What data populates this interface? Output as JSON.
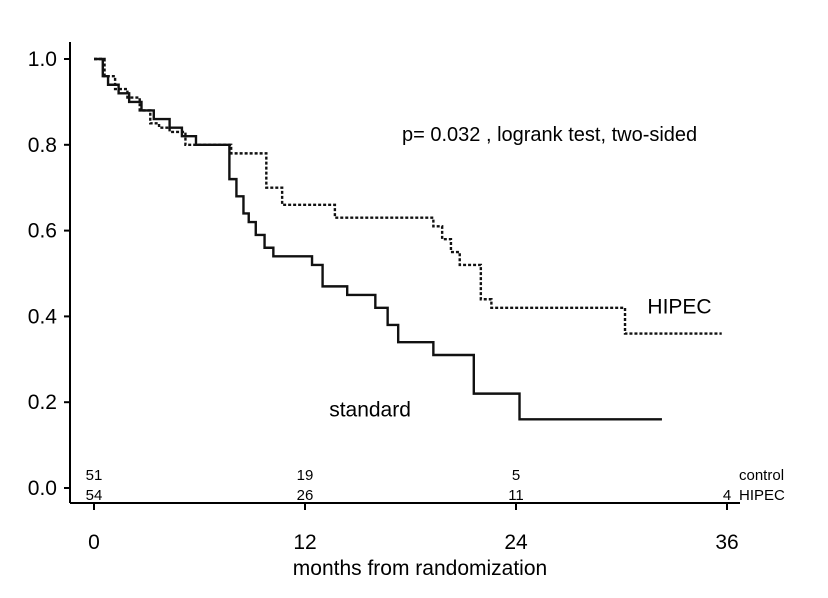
{
  "chart_data": {
    "type": "line",
    "title": "",
    "xlabel": "months from randomization",
    "ylabel": "",
    "xlim": [
      0,
      36
    ],
    "ylim": [
      0.0,
      1.0
    ],
    "x_ticks": [
      0,
      12,
      24,
      36
    ],
    "x_tick_labels": [
      "0",
      "12",
      "24",
      "36"
    ],
    "y_ticks": [
      0.0,
      0.2,
      0.4,
      0.6,
      0.8,
      1.0
    ],
    "y_tick_labels": [
      "0.0",
      "0.2",
      "0.4",
      "0.6",
      "0.8",
      "1.0"
    ],
    "grid": false,
    "annotation": "p=  0.032 , logrank test, two-sided",
    "series": [
      {
        "name": "standard",
        "style": "solid",
        "x": [
          0,
          0.5,
          0.8,
          1.4,
          2.0,
          2.7,
          3.4,
          4.3,
          5.0,
          5.8,
          7.7,
          8.1,
          8.5,
          8.8,
          9.2,
          9.7,
          10.2,
          12.4,
          13.0,
          14.4,
          16.0,
          16.7,
          17.3,
          19.3,
          21.6,
          24.2,
          32.3
        ],
        "y": [
          1.0,
          0.96,
          0.94,
          0.92,
          0.9,
          0.88,
          0.86,
          0.84,
          0.82,
          0.8,
          0.72,
          0.68,
          0.64,
          0.62,
          0.59,
          0.56,
          0.54,
          0.52,
          0.47,
          0.45,
          0.42,
          0.38,
          0.34,
          0.31,
          0.22,
          0.16,
          0.16
        ]
      },
      {
        "name": "HIPEC",
        "style": "dotted",
        "x": [
          0,
          0.6,
          1.2,
          1.9,
          2.6,
          3.2,
          3.7,
          4.3,
          5.2,
          7.8,
          9.8,
          10.7,
          13.7,
          19.3,
          19.8,
          20.3,
          20.8,
          22.0,
          22.6,
          30.2,
          35.7
        ],
        "y": [
          1.0,
          0.96,
          0.93,
          0.91,
          0.88,
          0.85,
          0.84,
          0.83,
          0.8,
          0.78,
          0.7,
          0.66,
          0.63,
          0.61,
          0.58,
          0.55,
          0.52,
          0.44,
          0.42,
          0.36,
          0.36
        ]
      }
    ],
    "series_labels": [
      {
        "text": "HIPEC",
        "x": 33.3,
        "y": 0.425
      },
      {
        "text": "standard",
        "x": 15.7,
        "y": 0.185
      }
    ],
    "risk_table": {
      "rows": [
        {
          "name": "control",
          "x": [
            0,
            12,
            24
          ],
          "values": [
            "51",
            "19",
            "5"
          ]
        },
        {
          "name": "HIPEC",
          "x": [
            0,
            12,
            24,
            36
          ],
          "values": [
            "54",
            "26",
            "11",
            "4"
          ]
        }
      ]
    }
  }
}
